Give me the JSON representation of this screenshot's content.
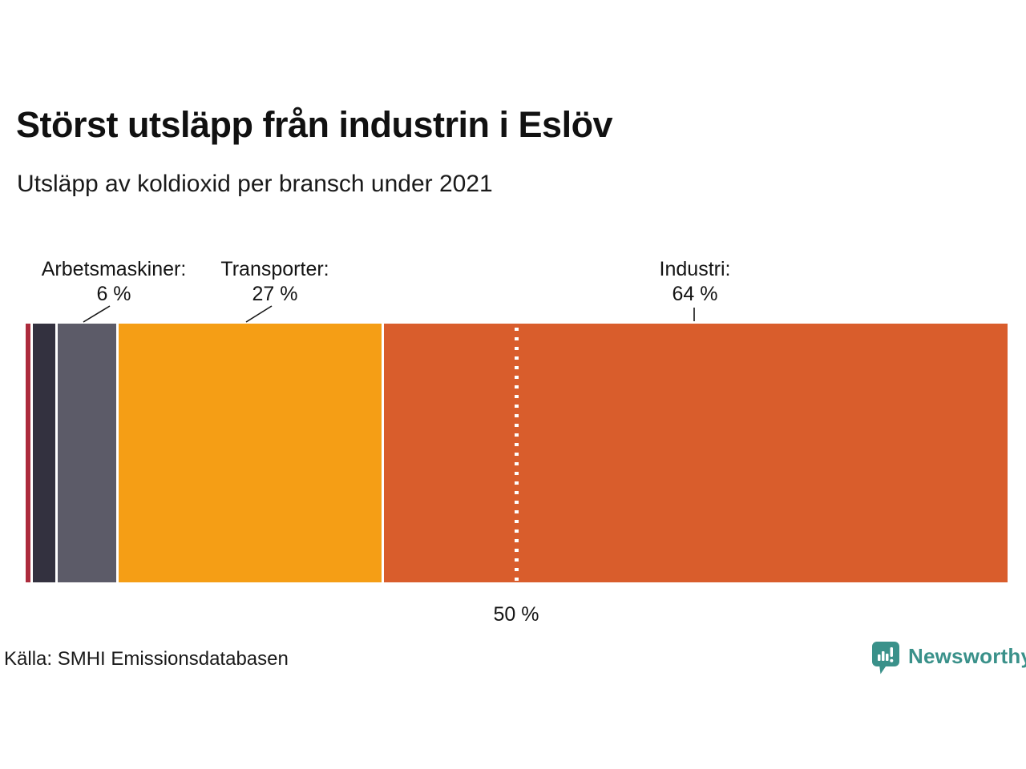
{
  "chart_data": {
    "type": "bar",
    "variant": "horizontal_stacked_100pct",
    "title": "Störst utsläpp från industrin i Eslöv",
    "subtitle": "Utsläpp av koldioxid per bransch under 2021",
    "unit": "%",
    "xlim": [
      0,
      100
    ],
    "grid": false,
    "legend": false,
    "segments": [
      {
        "label": "",
        "value": 0.5,
        "color": "#AC2B3C"
      },
      {
        "label": "",
        "value": 2.3,
        "color": "#33313F"
      },
      {
        "label": "Arbetsmaskiner",
        "value": 6,
        "color": "#5C5B68"
      },
      {
        "label": "Transporter",
        "value": 27,
        "color": "#F59E15"
      },
      {
        "label": "Industri",
        "value": 64,
        "color": "#D95D2C"
      }
    ],
    "annotations": [
      {
        "label": "Arbetsmaskiner:",
        "value": "6 %"
      },
      {
        "label": "Transporter:",
        "value": "27 %"
      },
      {
        "label": "Industri:",
        "value": "64 %"
      }
    ],
    "reference_line": {
      "label": "50 %",
      "position_percent": 50,
      "style": "dotted-white"
    },
    "gap_color": "#ffffff"
  },
  "footer": {
    "source": "Källa: SMHI Emissionsdatabasen",
    "brand": "Newsworthy",
    "brand_color": "#3A918A",
    "brand_icon": "bar-chart-speech-bubble"
  }
}
